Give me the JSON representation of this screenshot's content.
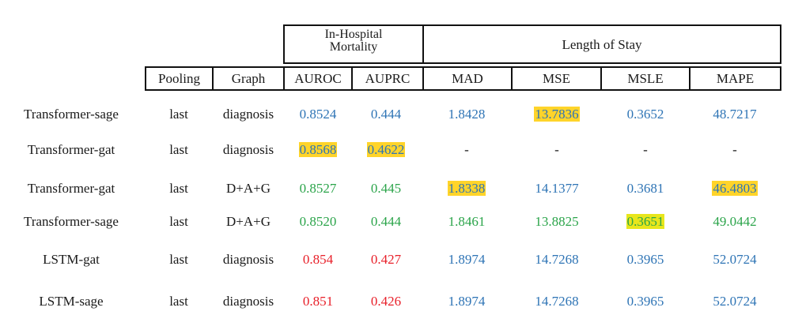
{
  "header": {
    "group_mortality": [
      "In-Hospital",
      "Mortality"
    ],
    "group_los": "Length of Stay",
    "columns": {
      "pooling": "Pooling",
      "graph": "Graph",
      "auroc": "AUROC",
      "auprc": "AUPRC",
      "mad": "MAD",
      "mse": "MSE",
      "msle": "MSLE",
      "mape": "MAPE"
    }
  },
  "colors": {
    "blue": "#2e74b5",
    "green": "#2ba44a",
    "red": "#e8202a",
    "dark": "#1a1a1a",
    "highlight": "#ffd42a",
    "highlight_green": "#e8e61c"
  },
  "rows": [
    {
      "model": "Transformer-sage",
      "pooling": "last",
      "graph": "diagnosis",
      "auroc": "0.8524",
      "auprc": "0.444",
      "mad": "1.8428",
      "mse": "13.7836",
      "msle": "0.3652",
      "mape": "48.7217",
      "color": "blue",
      "highlight": [
        "mse"
      ]
    },
    {
      "model": "Transformer-gat",
      "pooling": "last",
      "graph": "diagnosis",
      "auroc": "0.8568",
      "auprc": "0.4622",
      "mad": "-",
      "mse": "-",
      "msle": "-",
      "mape": "-",
      "color": "blue",
      "highlight": [
        "auroc",
        "auprc"
      ]
    },
    {
      "model": "Transformer-gat",
      "pooling": "last",
      "graph": "D+A+G",
      "auroc": "0.8527",
      "auprc": "0.445",
      "mad": "1.8338",
      "mse": "14.1377",
      "msle": "0.3681",
      "mape": "46.4803",
      "color": "blue",
      "metric_colors": {
        "auroc": "green",
        "auprc": "green"
      },
      "highlight": [
        "mad",
        "mape"
      ]
    },
    {
      "model": "Transformer-sage",
      "pooling": "last",
      "graph": "D+A+G",
      "auroc": "0.8520",
      "auprc": "0.444",
      "mad": "1.8461",
      "mse": "13.8825",
      "msle": "0.3651",
      "mape": "49.0442",
      "color": "green",
      "highlight": [
        "msle"
      ]
    },
    {
      "model": "LSTM-gat",
      "pooling": "last",
      "graph": "diagnosis",
      "auroc": "0.854",
      "auprc": "0.427",
      "mad": "1.8974",
      "mse": "14.7268",
      "msle": "0.3965",
      "mape": "52.0724",
      "color": "blue",
      "metric_colors": {
        "auroc": "red",
        "auprc": "red"
      },
      "highlight": []
    },
    {
      "model": "LSTM-sage",
      "pooling": "last",
      "graph": "diagnosis",
      "auroc": "0.851",
      "auprc": "0.426",
      "mad": "1.8974",
      "mse": "14.7268",
      "msle": "0.3965",
      "mape": "52.0724",
      "color": "blue",
      "metric_colors": {
        "auroc": "red",
        "auprc": "red"
      },
      "highlight": []
    }
  ]
}
